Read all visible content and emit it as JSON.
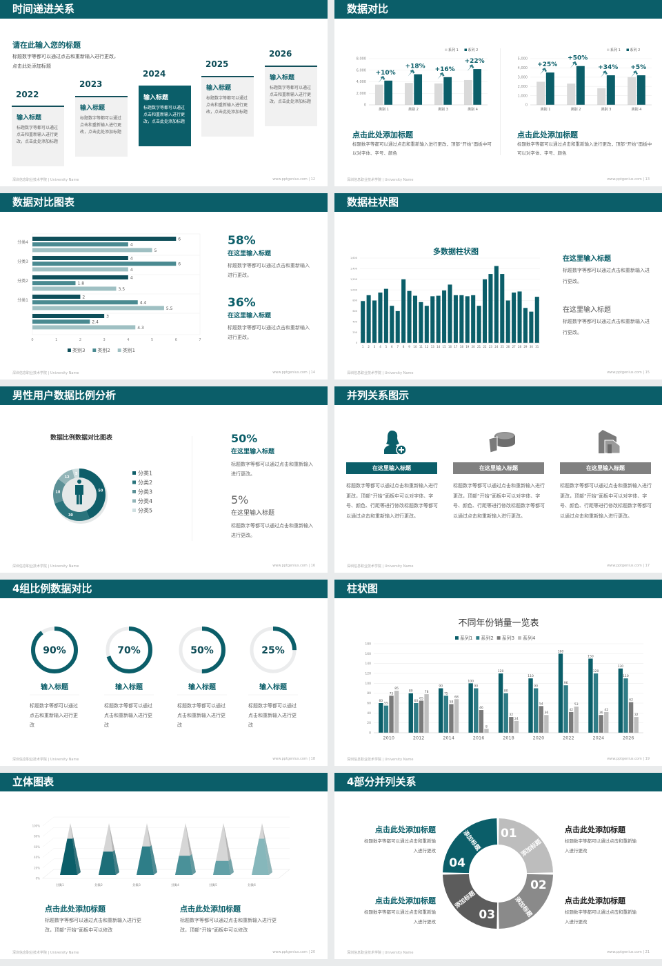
{
  "colors": {
    "brand": "#0b5e69",
    "gray": "#8a8a8a",
    "light": "#d9d9d9"
  },
  "footer": {
    "org": "深圳信息职业技术学院 | University Name",
    "url": "www.pptgenius.com"
  },
  "slides": [
    {
      "title": "时间递进关系",
      "page": "| 12",
      "heading": "请在此输入您的标题",
      "desc": "标题数字等都可以通过点击和重新输入进行更改，点击此处添加标题",
      "items": [
        {
          "year": "2022",
          "title": "输入标题",
          "text": "标题数字等都可以通过点击和重新输入进行更改，点击此处添加标题"
        },
        {
          "year": "2023",
          "title": "输入标题",
          "text": "标题数字等都可以通过点击和重新输入进行更改，点击此处添加标题"
        },
        {
          "year": "2024",
          "title": "输入标题",
          "text": "标题数字等都可以通过点击和重新输入进行更改，点击此处添加标题"
        },
        {
          "year": "2025",
          "title": "输入标题",
          "text": "标题数字等都可以通过点击和重新输入进行更改，点击此处添加标题"
        },
        {
          "year": "2026",
          "title": "输入标题",
          "text": "标题数字等都可以通过点击和重新输入进行更改，点击此处添加标题"
        }
      ]
    },
    {
      "title": "数据对比",
      "page": "| 13",
      "blocks": [
        {
          "title": "点击此处添加标题",
          "text": "标题数字等都可以通过点击和重新输入进行更改，顶部“开始”面板中可以对字体、字号、颜色"
        },
        {
          "title": "点击此处添加标题",
          "text": "标题数字等都可以通过点击和重新输入进行更改，顶部“开始”面板中可以对字体、字号、颜色"
        }
      ]
    },
    {
      "title": "数据对比图表",
      "page": "| 14",
      "stats": [
        {
          "value": "58%",
          "title": "在这里输入标题",
          "text": "标题数字等都可以通过点击和重新输入进行更改。"
        },
        {
          "value": "36%",
          "title": "在这里输入标题",
          "text": "标题数字等都可以通过点击和重新输入进行更改。"
        }
      ]
    },
    {
      "title": "数据柱状图",
      "page": "| 15",
      "blocks": [
        {
          "title": "在这里输入标题",
          "text": "标题数字等都可以通过点击和重新输入进行更改。"
        },
        {
          "title": "在这里输入标题",
          "text": "标题数字等都可以通过点击和重新输入进行更改。"
        }
      ]
    },
    {
      "title": "男性用户数据比例分析",
      "page": "| 16",
      "stats": [
        {
          "value": "50%",
          "title": "在这里输入标题",
          "text": "标题数字等都可以通过点击和重新输入进行更改。"
        },
        {
          "value": "5%",
          "title": "在这里输入标题",
          "text": "标题数字等都可以通过点击和重新输入进行更改。"
        }
      ]
    },
    {
      "title": "并列关系图示",
      "page": "| 17",
      "columns": [
        {
          "icon": "woman-add-icon",
          "title": "在这里输入标题",
          "text": "标题数字等都可以通过点击和重新输入进行更改，顶部“开始”面板中可以对字体、字号、颜色、行距等进行修改标题数字等都可以通过点击和重新输入进行更改。"
        },
        {
          "icon": "pie-chart-icon",
          "title": "在这里输入标题",
          "text": "标题数字等都可以通过点击和重新输入进行更改，顶部“开始”面板中可以对字体、字号、颜色、行距等进行修改标题数字等都可以通过点击和重新输入进行更改。"
        },
        {
          "icon": "building-icon",
          "title": "在这里输入标题",
          "text": "标题数字等都可以通过点击和重新输入进行更改，顶部“开始”面板中可以对字体、字号、颜色、行距等进行修改标题数字等都可以通过点击和重新输入进行更改。"
        }
      ]
    },
    {
      "title": "4组比例数据对比",
      "page": "| 18",
      "rings": [
        {
          "label": "90%",
          "value": 90,
          "title": "输入标题",
          "text": "标题数字等都可以通过点击和重新输入进行更改"
        },
        {
          "label": "70%",
          "value": 70,
          "title": "输入标题",
          "text": "标题数字等都可以通过点击和重新输入进行更改"
        },
        {
          "label": "50%",
          "value": 50,
          "title": "输入标题",
          "text": "标题数字等都可以通过点击和重新输入进行更改"
        },
        {
          "label": "25%",
          "value": 25,
          "title": "输入标题",
          "text": "标题数字等都可以通过点击和重新输入进行更改"
        }
      ]
    },
    {
      "title": "柱状图",
      "page": "| 19"
    },
    {
      "title": "立体图表",
      "page": "| 20",
      "blocks": [
        {
          "title": "点击此处添加标题",
          "text": "标题数字等都可以通过点击和重新输入进行更改，顶部“开始”面板中可以修改"
        },
        {
          "title": "点击此处添加标题",
          "text": "标题数字等都可以通过点击和重新输入进行更改，顶部“开始”面板中可以修改"
        }
      ]
    },
    {
      "title": "4部分并列关系",
      "page": "| 21",
      "segments": [
        {
          "num": "01",
          "label": "添加标题",
          "color": "#bdbdbd"
        },
        {
          "num": "02",
          "label": "添加标题",
          "color": "#8a8a8a"
        },
        {
          "num": "03",
          "label": "添加标题",
          "color": "#5c5c5c"
        },
        {
          "num": "04",
          "label": "添加标题",
          "color": "#0b5e69"
        }
      ],
      "blocks": [
        {
          "title": "点击此处添加标题",
          "text": "标题数字等都可以通过点击和重新输入进行更改"
        },
        {
          "title": "点击此处添加标题",
          "text": "标题数字等都可以通过点击和重新输入进行更改"
        },
        {
          "title": "点击此处添加标题",
          "text": "标题数字等都可以通过点击和重新输入进行更改"
        },
        {
          "title": "点击此处添加标题",
          "text": "标题数字等都可以通过点击和重新输入进行更改"
        }
      ]
    }
  ],
  "chart_data": [
    {
      "type": "bar",
      "categories": [
        "类别 1",
        "类别 2",
        "类别 3",
        "类别 4"
      ],
      "ylim": [
        0,
        8000
      ],
      "yticks": [
        0,
        2000,
        4000,
        6000,
        8000
      ],
      "series": [
        {
          "name": "系列 1",
          "values": [
            3500,
            3800,
            3700,
            4300
          ],
          "color": "#d9d9d9"
        },
        {
          "name": "系列 2",
          "values": [
            4200,
            5300,
            4800,
            6200
          ],
          "color": "#0b5e69"
        }
      ],
      "annotations": [
        "+10%",
        "+18%",
        "+16%",
        "+22%"
      ],
      "legend": "top-right"
    },
    {
      "type": "bar",
      "categories": [
        "类别 1",
        "类别 2",
        "类别 3",
        "类别 4"
      ],
      "ylim": [
        0,
        5000
      ],
      "yticks": [
        0,
        1000,
        2000,
        3000,
        4000,
        5000
      ],
      "series": [
        {
          "name": "系列 1",
          "values": [
            2500,
            2300,
            1800,
            3000
          ],
          "color": "#d9d9d9"
        },
        {
          "name": "系列 2",
          "values": [
            3500,
            4200,
            3200,
            3200
          ],
          "color": "#0b5e69"
        }
      ],
      "annotations": [
        "+25%",
        "+50%",
        "+34%",
        "+5%"
      ],
      "legend": "top-right"
    },
    {
      "type": "bar",
      "orientation": "horizontal",
      "categories": [
        "分类4",
        "分类3",
        "分类2",
        "分类1",
        ""
      ],
      "xlim": [
        0,
        7
      ],
      "xticks": [
        0,
        1,
        2,
        3,
        4,
        5,
        6,
        7
      ],
      "series": [
        {
          "name": "类别3",
          "values": [
            6,
            4,
            4,
            2,
            3
          ],
          "color": "#0f4f5a"
        },
        {
          "name": "类别2",
          "values": [
            4,
            6,
            1.8,
            4.4,
            2.4
          ],
          "color": "#4a8a91"
        },
        {
          "name": "类别1",
          "values": [
            5,
            4,
            3.5,
            5.5,
            4.3
          ],
          "color": "#9fc0c3"
        }
      ],
      "legend": "bottom"
    },
    {
      "type": "bar",
      "title": "多数据柱状图",
      "categories": [
        "1",
        "2",
        "3",
        "4",
        "5",
        "6",
        "7",
        "8",
        "9",
        "10",
        "11",
        "12",
        "13",
        "14",
        "15",
        "16",
        "17",
        "18",
        "19",
        "20",
        "21",
        "22",
        "23",
        "24",
        "25",
        "26",
        "27",
        "28",
        "29",
        "30",
        "31"
      ],
      "ylim": [
        0,
        1600
      ],
      "yticks": [
        0,
        200,
        400,
        600,
        800,
        1000,
        1200,
        1400,
        1600
      ],
      "series": [
        {
          "values": [
            790,
            900,
            800,
            950,
            1020,
            700,
            600,
            1200,
            980,
            890,
            770,
            700,
            880,
            890,
            990,
            1100,
            900,
            900,
            880,
            900,
            700,
            1200,
            1300,
            1450,
            1300,
            800,
            950,
            970,
            660,
            590,
            870
          ],
          "color": "#0b5e69"
        }
      ]
    },
    {
      "type": "pie",
      "title": "数据比例数据对比图表",
      "donut": true,
      "categories": [
        "分类1",
        "分类2",
        "分类3",
        "分类4",
        "分类5"
      ],
      "values": [
        50,
        30,
        18,
        12,
        5
      ],
      "colors": [
        "#0f5e69",
        "#2a747c",
        "#5b9096",
        "#93b5b8",
        "#cfdfe0"
      ],
      "legend": "right"
    },
    {
      "type": "bar",
      "title": "不同年份销量一览表",
      "categories": [
        "2010",
        "2012",
        "2014",
        "2016",
        "2018",
        "2020",
        "2022",
        "2024",
        "2026"
      ],
      "ylim": [
        0,
        180
      ],
      "yticks": [
        0,
        20,
        40,
        60,
        80,
        100,
        120,
        140,
        160,
        180
      ],
      "series": [
        {
          "name": "系列1",
          "values": [
            60,
            80,
            90,
            100,
            120,
            110,
            160,
            150,
            130
          ],
          "color": "#0b5e69"
        },
        {
          "name": "系列2",
          "values": [
            55,
            60,
            75,
            90,
            80,
            90,
            96,
            120,
            110
          ],
          "color": "#2f7d87"
        },
        {
          "name": "系列3",
          "values": [
            75,
            65,
            58,
            46,
            32,
            54,
            42,
            36,
            62
          ],
          "color": "#7a7a7a"
        },
        {
          "name": "系列4",
          "values": [
            85,
            78,
            68,
            8,
            24,
            36,
            53,
            42,
            32
          ],
          "color": "#bfbfbf"
        }
      ],
      "legend": "top"
    },
    {
      "type": "bar",
      "style": "3d-pyramid",
      "categories": [
        "分类1",
        "分类2",
        "分类3",
        "分类4",
        "分类5",
        "分类6"
      ],
      "ylim": [
        0,
        100
      ],
      "yticks": [
        "0%",
        "20%",
        "40%",
        "60%",
        "80%",
        "100%"
      ],
      "values": [
        70,
        45,
        55,
        37,
        27,
        70
      ],
      "colors": [
        "#0b5e69",
        "#1d6e78",
        "#2e7e88",
        "#4a9199",
        "#62a0a7",
        "#86b7bb"
      ]
    }
  ]
}
